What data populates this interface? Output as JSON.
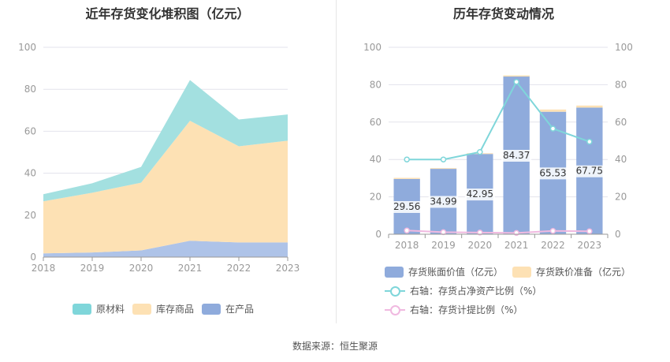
{
  "footer": {
    "source": "数据来源：恒生聚源"
  },
  "chart_data": [
    {
      "type": "area",
      "title": "近年存货变化堆积图（亿元）",
      "x": [
        "2018",
        "2019",
        "2020",
        "2021",
        "2022",
        "2023"
      ],
      "ylim": [
        0,
        100
      ],
      "yticks": [
        "0",
        "20",
        "40",
        "60",
        "80",
        "100"
      ],
      "stacked": true,
      "series": [
        {
          "name": "在产品",
          "color": "#aec3e8",
          "values": [
            1.8,
            2.2,
            3.2,
            7.8,
            7.0,
            7.0
          ]
        },
        {
          "name": "库存商品",
          "color": "#fde1b4",
          "values": [
            24.8,
            28.5,
            32.3,
            57.2,
            45.8,
            48.5
          ]
        },
        {
          "name": "原材料",
          "color": "#a3e0e0",
          "values": [
            3.4,
            4.5,
            7.5,
            19.4,
            12.8,
            12.5
          ]
        }
      ],
      "legend": {
        "position": "bottom",
        "order": [
          "原材料",
          "库存商品",
          "在产品"
        ]
      }
    },
    {
      "type": "bar",
      "title": "历年存货变动情况",
      "categories": [
        "2018",
        "2019",
        "2020",
        "2021",
        "2022",
        "2023"
      ],
      "ylim": [
        0,
        100
      ],
      "yticks": [
        "0",
        "20",
        "40",
        "60",
        "80",
        "100"
      ],
      "y2lim": [
        0,
        100
      ],
      "y2ticks": [
        "0",
        "20",
        "40",
        "60",
        "80",
        "100"
      ],
      "series": [
        {
          "name": "存货账面价值（亿元）",
          "color": "#8fabdc",
          "values": [
            29.56,
            34.99,
            42.95,
            84.37,
            65.53,
            67.75
          ],
          "labels": [
            "29.56",
            "34.99",
            "42.95",
            "84.37",
            "65.53",
            "67.75"
          ]
        },
        {
          "name": "存货跌价准备（亿元）",
          "color": "#fde1b4",
          "values": [
            0.6,
            0.4,
            0.4,
            0.6,
            1.2,
            1.1
          ]
        },
        {
          "name": "右轴：存货占净资产比例（%）",
          "type": "line",
          "axis": "right",
          "color": "#7fd6da",
          "values": [
            40.0,
            40.0,
            44.0,
            81.5,
            56.5,
            49.5
          ]
        },
        {
          "name": "右轴：存货计提比例（%）",
          "type": "line",
          "axis": "right",
          "color": "#f0b9e0",
          "values": [
            2.0,
            1.1,
            0.9,
            0.7,
            1.8,
            1.6
          ]
        }
      ],
      "legend": {
        "position": "bottom"
      }
    }
  ]
}
